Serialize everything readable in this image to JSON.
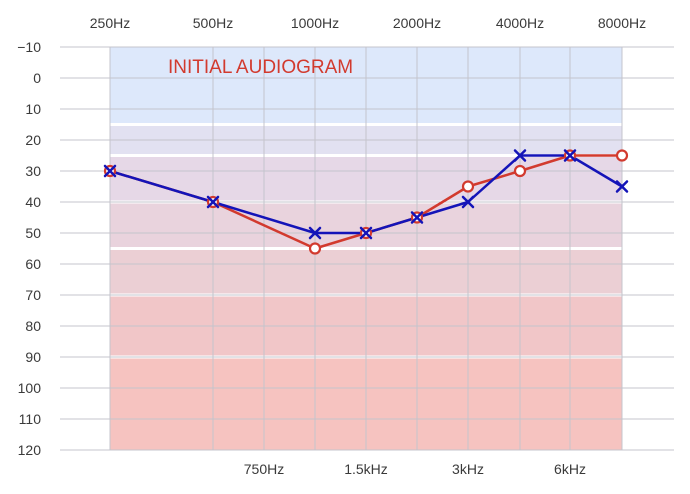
{
  "chart_data": {
    "type": "line",
    "annotation": "INITIAL AUDIOGRAM",
    "top_ticks": [
      "250Hz",
      "500Hz",
      "1000Hz",
      "2000Hz",
      "4000Hz",
      "8000Hz"
    ],
    "bottom_ticks": [
      "750Hz",
      "1.5kHz",
      "3kHz",
      "6kHz"
    ],
    "y_ticks": [
      "−10",
      "0",
      "10",
      "20",
      "30",
      "40",
      "50",
      "60",
      "70",
      "80",
      "90",
      "100",
      "110",
      "120"
    ],
    "y_range": [
      -10,
      120
    ],
    "y_inverted": true,
    "x_positions": [
      "250Hz",
      "500Hz",
      "750Hz",
      "1000Hz",
      "1.5kHz",
      "2000Hz",
      "3kHz",
      "4000Hz",
      "6kHz",
      "8000Hz"
    ],
    "hearing_bands": [
      {
        "from": -10,
        "to": 15,
        "color": "#dde8fb"
      },
      {
        "from": 15,
        "to": 25,
        "color": "#e2e1f1"
      },
      {
        "from": 25,
        "to": 40,
        "color": "#e6d8e7"
      },
      {
        "from": 40,
        "to": 55,
        "color": "#e9d3dd"
      },
      {
        "from": 55,
        "to": 70,
        "color": "#ebcfd4"
      },
      {
        "from": 70,
        "to": 90,
        "color": "#f1c6c8"
      },
      {
        "from": 90,
        "to": 120,
        "color": "#f6c3c0"
      }
    ],
    "series": [
      {
        "marker": "circle",
        "color": "#d23a2e",
        "points": [
          {
            "x": "250Hz",
            "y": 30
          },
          {
            "x": "500Hz",
            "y": 40
          },
          {
            "x": "1000Hz",
            "y": 55
          },
          {
            "x": "1.5kHz",
            "y": 50
          },
          {
            "x": "2000Hz",
            "y": 45
          },
          {
            "x": "3kHz",
            "y": 35
          },
          {
            "x": "4000Hz",
            "y": 30
          },
          {
            "x": "6kHz",
            "y": 25
          },
          {
            "x": "8000Hz",
            "y": 25
          }
        ]
      },
      {
        "marker": "cross",
        "color": "#1414b8",
        "points": [
          {
            "x": "250Hz",
            "y": 30
          },
          {
            "x": "500Hz",
            "y": 40
          },
          {
            "x": "1000Hz",
            "y": 50
          },
          {
            "x": "1.5kHz",
            "y": 50
          },
          {
            "x": "2000Hz",
            "y": 45
          },
          {
            "x": "3kHz",
            "y": 40
          },
          {
            "x": "4000Hz",
            "y": 25
          },
          {
            "x": "6kHz",
            "y": 25
          },
          {
            "x": "8000Hz",
            "y": 35
          }
        ]
      }
    ],
    "annotation_color": "#d23a2e",
    "grid_color": "#c4c4cc"
  }
}
